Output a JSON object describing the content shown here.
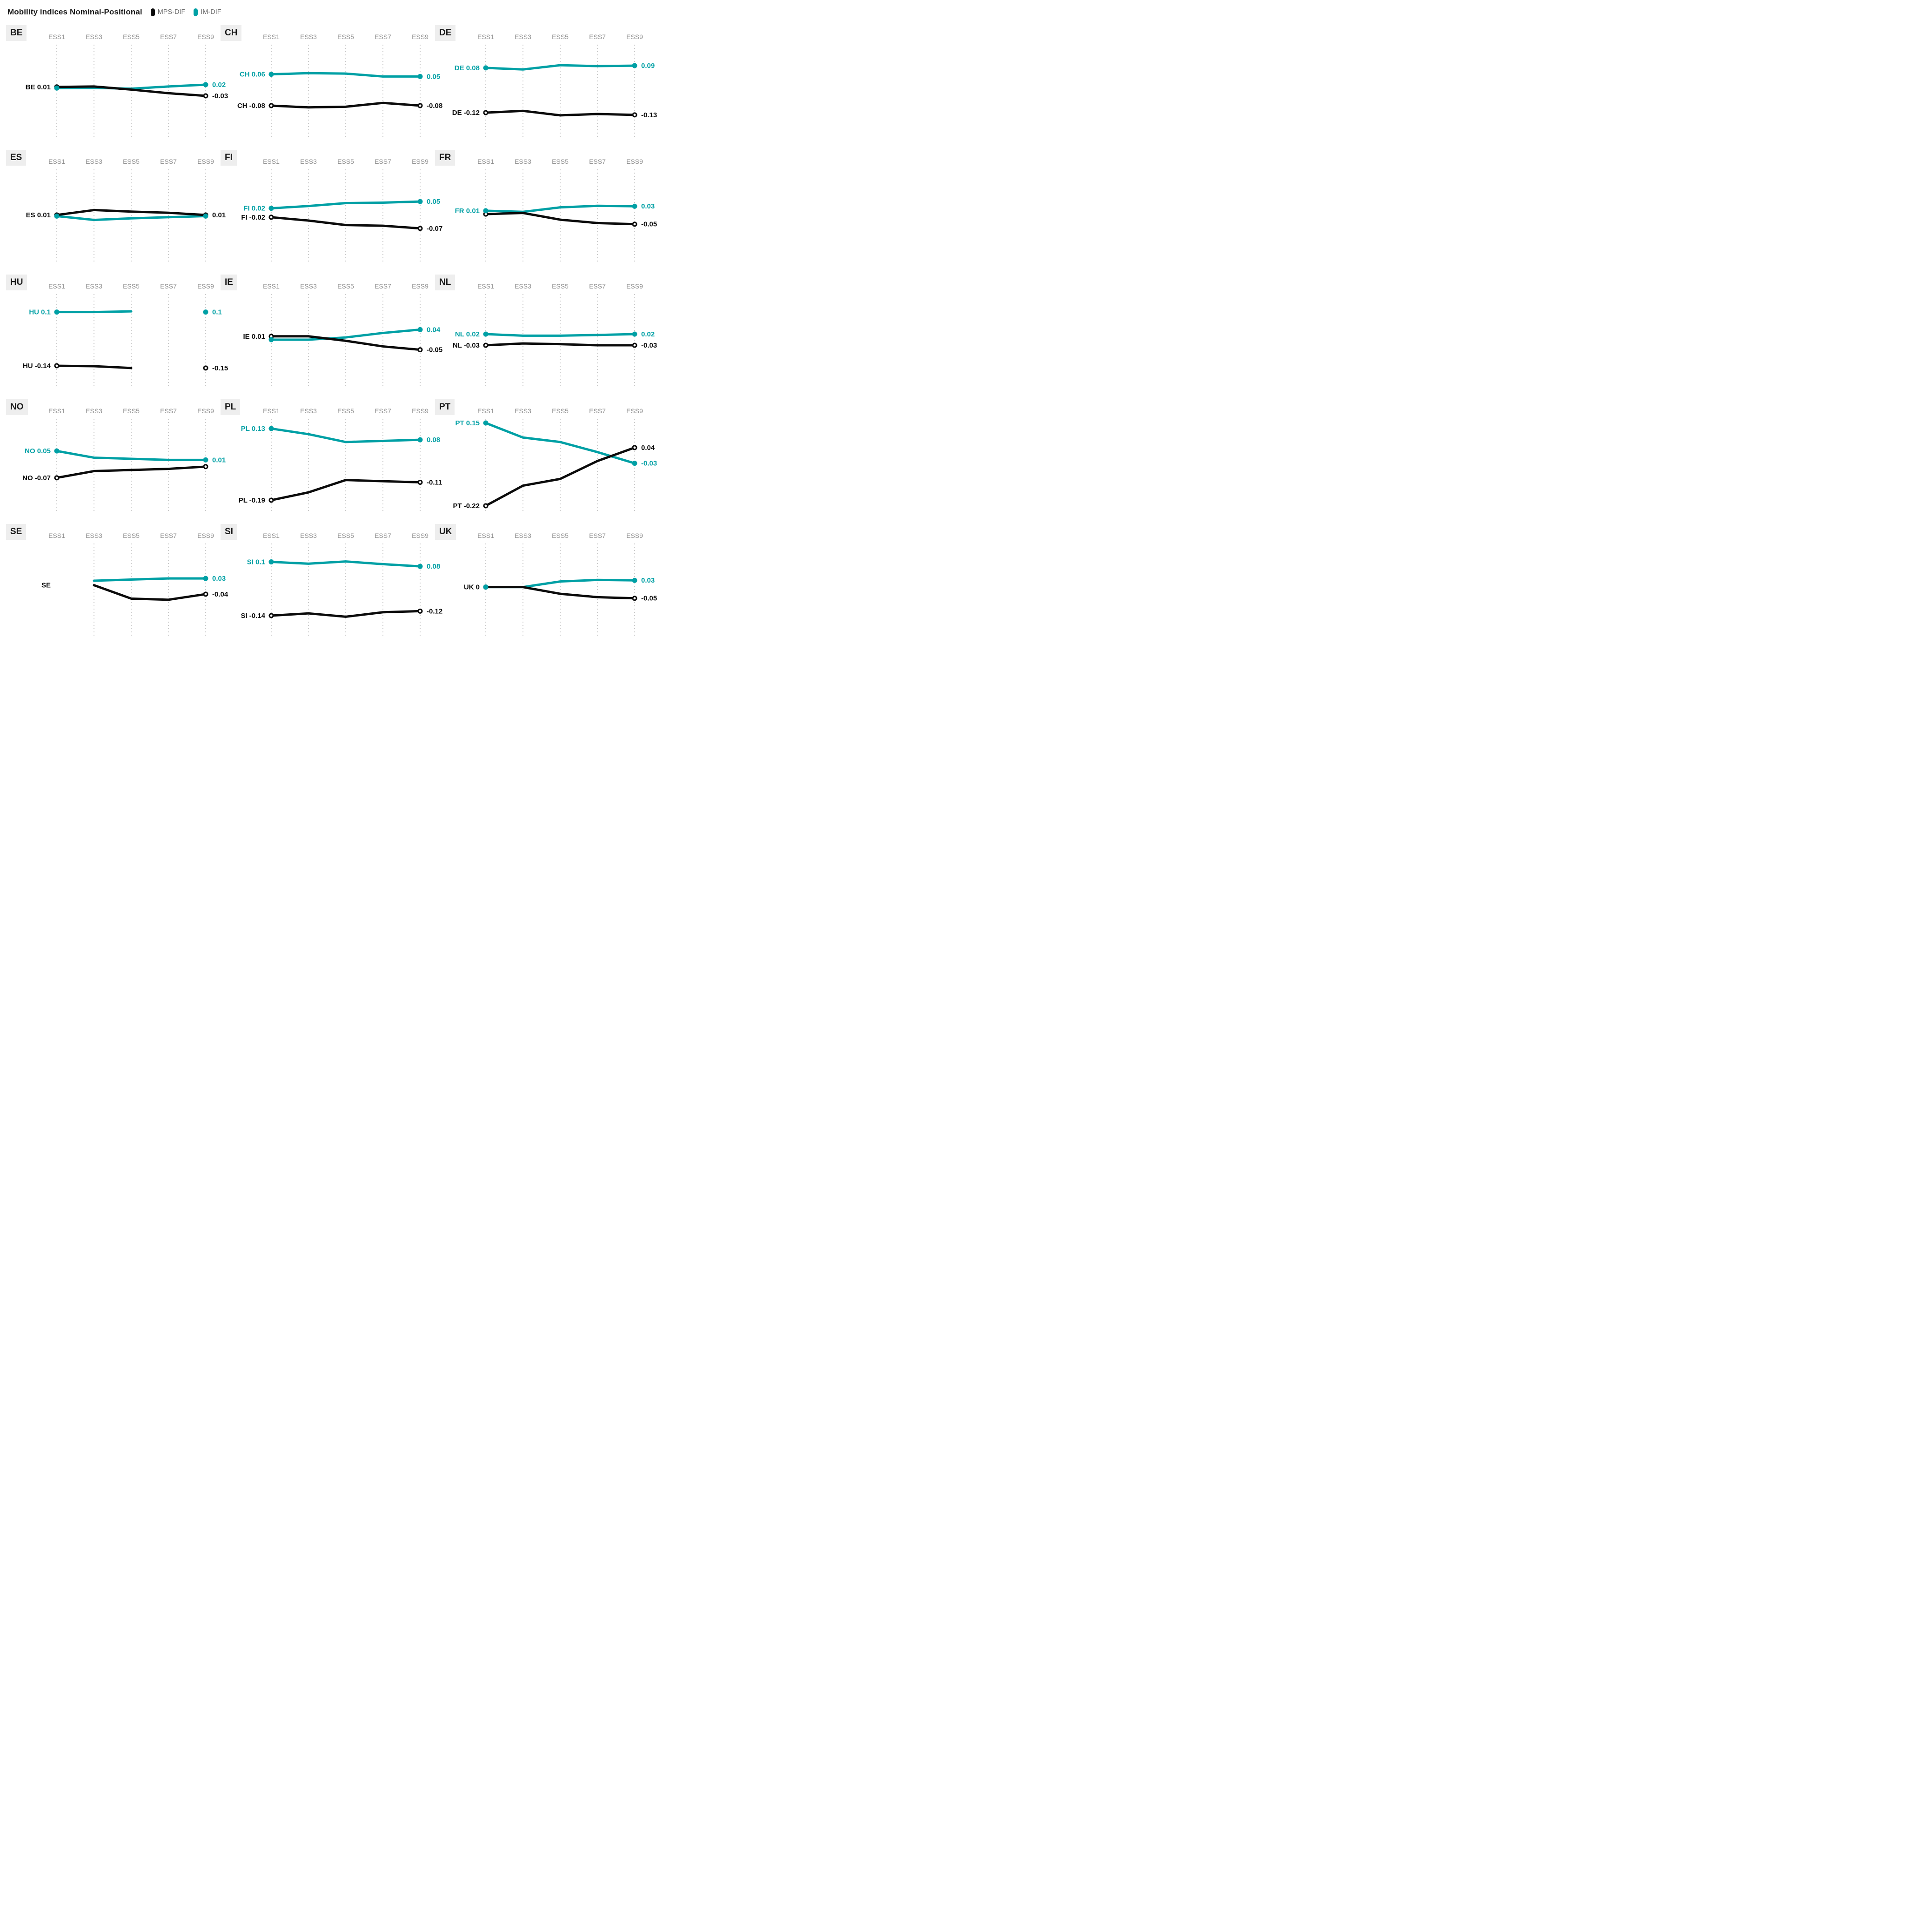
{
  "header": {
    "title": "Mobility indices Nominal-Positional",
    "legend": [
      {
        "label": "MPS-DIF",
        "series": "mps",
        "color": "#0b0b0b"
      },
      {
        "label": "IM-DIF",
        "series": "im",
        "color": "#00A0A5"
      }
    ]
  },
  "colors": {
    "mps": "#0b0b0b",
    "im": "#00A0A5",
    "grid": "#b8b8b8",
    "tick": "#8f8f8f",
    "badge_bg": "#eeeeee",
    "badge_text": "#1a1a1a"
  },
  "chart_data": {
    "type": "line",
    "x_categories": [
      "ESS1",
      "ESS3",
      "ESS5",
      "ESS7",
      "ESS9"
    ],
    "legend": [
      "MPS-DIF",
      "IM-DIF"
    ],
    "panels": [
      {
        "code": "BE",
        "gridline_cols": [
          0,
          1,
          2,
          3,
          4
        ],
        "series": [
          {
            "name": "MPS-DIF",
            "key": "mps",
            "values": [
              0.01,
              0.012,
              -0.002,
              -0.018,
              -0.03
            ],
            "start_label": "BE 0.01",
            "end_label": "-0.03",
            "dot": "ring"
          },
          {
            "name": "IM-DIF",
            "key": "im",
            "values": [
              0.005,
              0.006,
              0.002,
              0.012,
              0.02
            ],
            "start_label": "",
            "end_label": "0.02",
            "dot": "fill"
          }
        ]
      },
      {
        "code": "CH",
        "gridline_cols": [
          0,
          1,
          2,
          3,
          4
        ],
        "series": [
          {
            "name": "MPS-DIF",
            "key": "mps",
            "values": [
              -0.08,
              -0.088,
              -0.085,
              -0.068,
              -0.08
            ],
            "start_label": "CH -0.08",
            "end_label": "-0.08",
            "dot": "ring"
          },
          {
            "name": "IM-DIF",
            "key": "im",
            "values": [
              0.06,
              0.065,
              0.063,
              0.05,
              0.05
            ],
            "start_label": "CH 0.06",
            "end_label": "0.05",
            "dot": "fill"
          }
        ]
      },
      {
        "code": "DE",
        "gridline_cols": [
          0,
          1,
          2,
          3,
          4
        ],
        "series": [
          {
            "name": "MPS-DIF",
            "key": "mps",
            "values": [
              -0.12,
              -0.112,
              -0.132,
              -0.126,
              -0.13
            ],
            "start_label": "DE -0.12",
            "end_label": "-0.13",
            "dot": "ring"
          },
          {
            "name": "IM-DIF",
            "key": "im",
            "values": [
              0.08,
              0.073,
              0.092,
              0.088,
              0.09
            ],
            "start_label": "DE 0.08",
            "end_label": "0.09",
            "dot": "fill"
          }
        ]
      },
      {
        "code": "ES",
        "gridline_cols": [
          0,
          1,
          2,
          3,
          4
        ],
        "series": [
          {
            "name": "MPS-DIF",
            "key": "mps",
            "values": [
              0.01,
              0.032,
              0.025,
              0.02,
              0.01
            ],
            "start_label": "ES 0.01",
            "end_label": "0.01",
            "dot": "ring"
          },
          {
            "name": "IM-DIF",
            "key": "im",
            "values": [
              0.005,
              -0.012,
              -0.005,
              0.0,
              0.005
            ],
            "start_label": "",
            "end_label": "",
            "dot": "fill"
          }
        ]
      },
      {
        "code": "FI",
        "gridline_cols": [
          0,
          1,
          2,
          3,
          4
        ],
        "series": [
          {
            "name": "MPS-DIF",
            "key": "mps",
            "values": [
              -0.02,
              -0.035,
              -0.055,
              -0.058,
              -0.07
            ],
            "start_label": "FI -0.02",
            "end_label": "-0.07",
            "dot": "ring"
          },
          {
            "name": "IM-DIF",
            "key": "im",
            "values": [
              0.02,
              0.03,
              0.043,
              0.045,
              0.05
            ],
            "start_label": "FI 0.02",
            "end_label": "0.05",
            "dot": "fill"
          }
        ]
      },
      {
        "code": "FR",
        "gridline_cols": [
          0,
          1,
          2,
          3,
          4
        ],
        "series": [
          {
            "name": "MPS-DIF",
            "key": "mps",
            "values": [
              -0.005,
              0.0,
              -0.03,
              -0.045,
              -0.05
            ],
            "start_label": "",
            "end_label": "-0.05",
            "dot": "ring"
          },
          {
            "name": "IM-DIF",
            "key": "im",
            "values": [
              0.01,
              0.005,
              0.025,
              0.032,
              0.03
            ],
            "start_label": "FR 0.01",
            "end_label": "0.03",
            "dot": "fill"
          }
        ]
      },
      {
        "code": "HU",
        "gridline_cols": [
          0,
          1,
          2,
          3,
          4
        ],
        "series": [
          {
            "name": "MPS-DIF",
            "key": "mps",
            "values": [
              -0.14,
              -0.142,
              -0.15,
              null,
              -0.15
            ],
            "start_label": "HU -0.14",
            "end_label": "-0.15",
            "dot": "ring"
          },
          {
            "name": "IM-DIF",
            "key": "im",
            "values": [
              0.1,
              0.1,
              0.103,
              null,
              0.1
            ],
            "start_label": "HU 0.1",
            "end_label": "0.1",
            "dot": "fill"
          }
        ]
      },
      {
        "code": "IE",
        "gridline_cols": [
          0,
          1,
          2,
          3,
          4
        ],
        "series": [
          {
            "name": "MPS-DIF",
            "key": "mps",
            "values": [
              0.01,
              0.01,
              -0.01,
              -0.035,
              -0.05
            ],
            "start_label": "IE 0.01",
            "end_label": "-0.05",
            "dot": "ring"
          },
          {
            "name": "IM-DIF",
            "key": "im",
            "values": [
              -0.005,
              -0.005,
              0.005,
              0.025,
              0.04
            ],
            "start_label": "",
            "end_label": "0.04",
            "dot": "fill"
          }
        ]
      },
      {
        "code": "NL",
        "gridline_cols": [
          0,
          1,
          2,
          3,
          4
        ],
        "series": [
          {
            "name": "MPS-DIF",
            "key": "mps",
            "values": [
              -0.03,
              -0.022,
              -0.025,
              -0.03,
              -0.03
            ],
            "start_label": "NL -0.03",
            "end_label": "-0.03",
            "dot": "ring"
          },
          {
            "name": "IM-DIF",
            "key": "im",
            "values": [
              0.02,
              0.013,
              0.013,
              0.016,
              0.02
            ],
            "start_label": "NL 0.02",
            "end_label": "0.02",
            "dot": "fill"
          }
        ]
      },
      {
        "code": "NO",
        "gridline_cols": [
          0,
          1,
          2,
          3,
          4
        ],
        "series": [
          {
            "name": "MPS-DIF",
            "key": "mps",
            "values": [
              -0.07,
              -0.04,
              -0.035,
              -0.03,
              -0.02
            ],
            "start_label": "NO -0.07",
            "end_label": "",
            "dot": "ring"
          },
          {
            "name": "IM-DIF",
            "key": "im",
            "values": [
              0.05,
              0.02,
              0.015,
              0.01,
              0.01
            ],
            "start_label": "NO 0.05",
            "end_label": "0.01",
            "dot": "fill"
          }
        ]
      },
      {
        "code": "PL",
        "gridline_cols": [
          0,
          1,
          2,
          3,
          4
        ],
        "series": [
          {
            "name": "MPS-DIF",
            "key": "mps",
            "values": [
              -0.19,
              -0.155,
              -0.1,
              -0.105,
              -0.11
            ],
            "start_label": "PL -0.19",
            "end_label": "-0.11",
            "dot": "ring"
          },
          {
            "name": "IM-DIF",
            "key": "im",
            "values": [
              0.13,
              0.105,
              0.07,
              0.075,
              0.08
            ],
            "start_label": "PL 0.13",
            "end_label": "0.08",
            "dot": "fill"
          }
        ]
      },
      {
        "code": "PT",
        "gridline_cols": [
          0,
          1,
          2,
          3,
          4
        ],
        "series": [
          {
            "name": "MPS-DIF",
            "key": "mps",
            "values": [
              -0.22,
              -0.13,
              -0.1,
              -0.02,
              0.04
            ],
            "start_label": "PT -0.22",
            "end_label": "0.04",
            "dot": "ring"
          },
          {
            "name": "IM-DIF",
            "key": "im",
            "values": [
              0.15,
              0.085,
              0.065,
              0.02,
              -0.03
            ],
            "start_label": "PT 0.15",
            "end_label": "-0.03",
            "dot": "fill"
          }
        ]
      },
      {
        "code": "SE",
        "gridline_cols": [
          1,
          2,
          3,
          4
        ],
        "series": [
          {
            "name": "MPS-DIF",
            "key": "mps",
            "values": [
              null,
              0.0,
              -0.06,
              -0.065,
              -0.04
            ],
            "start_label": "SE",
            "end_label": "-0.04",
            "dot": "ring"
          },
          {
            "name": "IM-DIF",
            "key": "im",
            "values": [
              null,
              0.02,
              0.025,
              0.03,
              0.03
            ],
            "start_label": "",
            "end_label": "0.03",
            "dot": "fill"
          }
        ]
      },
      {
        "code": "SI",
        "gridline_cols": [
          0,
          1,
          2,
          3,
          4
        ],
        "series": [
          {
            "name": "MPS-DIF",
            "key": "mps",
            "values": [
              -0.14,
              -0.13,
              -0.145,
              -0.125,
              -0.12
            ],
            "start_label": "SI -0.14",
            "end_label": "-0.12",
            "dot": "ring"
          },
          {
            "name": "IM-DIF",
            "key": "im",
            "values": [
              0.1,
              0.092,
              0.102,
              0.09,
              0.08
            ],
            "start_label": "SI 0.1",
            "end_label": "0.08",
            "dot": "fill"
          }
        ]
      },
      {
        "code": "UK",
        "gridline_cols": [
          0,
          1,
          2,
          3,
          4
        ],
        "series": [
          {
            "name": "MPS-DIF",
            "key": "mps",
            "values": [
              0.0,
              0.0,
              -0.03,
              -0.045,
              -0.05
            ],
            "start_label": "UK 0",
            "end_label": "-0.05",
            "dot": "ring"
          },
          {
            "name": "IM-DIF",
            "key": "im",
            "values": [
              0.0,
              0.0,
              0.025,
              0.032,
              0.03
            ],
            "start_label": "",
            "end_label": "0.03",
            "dot": "fill"
          }
        ]
      }
    ]
  }
}
